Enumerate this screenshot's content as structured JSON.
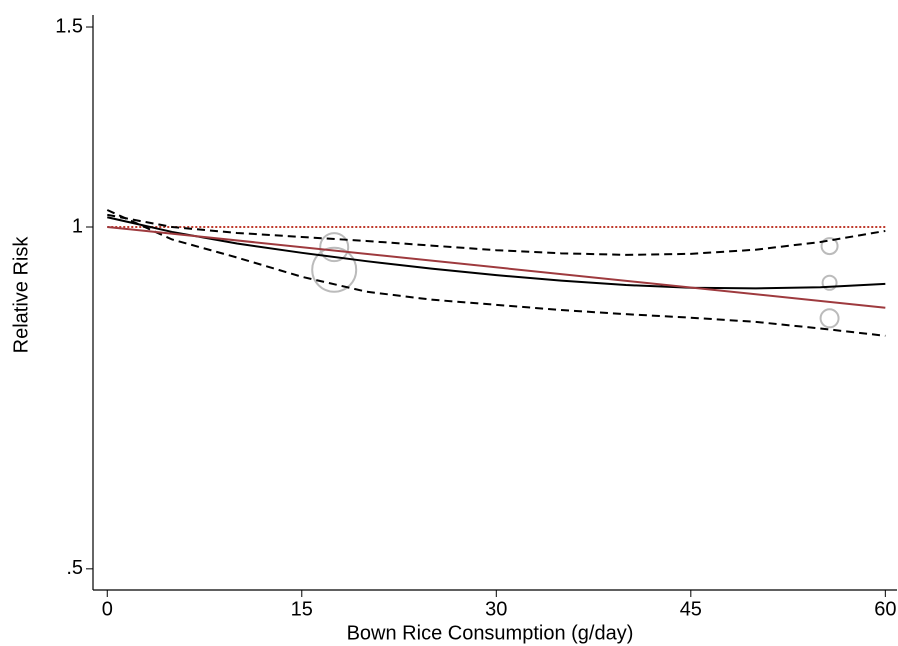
{
  "chart_data": {
    "type": "line",
    "x_label": "Bown Rice Consumption (g/day)",
    "y_label": "Relative Risk",
    "log_y": true,
    "xlim": [
      -1.1,
      60.9
    ],
    "xticks": [
      0,
      15,
      30,
      45,
      60
    ],
    "ylim": [
      0.479,
      1.537
    ],
    "yticks": [
      {
        "value": 0.5,
        "label": ".5"
      },
      1,
      1.5
    ],
    "reference_line": {
      "value": 1,
      "color": "#c0392b"
    },
    "series": [
      {
        "color": "#000000",
        "style": "solid",
        "x": [
          0,
          5,
          10,
          15,
          20,
          25,
          30,
          35,
          40,
          45,
          50,
          55,
          60
        ],
        "values": [
          1.02,
          0.99,
          0.967,
          0.949,
          0.933,
          0.919,
          0.907,
          0.897,
          0.889,
          0.884,
          0.883,
          0.885,
          0.891
        ]
      },
      {
        "color": "#000000",
        "style": "dashed",
        "x": [
          0,
          5,
          10,
          15,
          20,
          25,
          30,
          35,
          40,
          45,
          50,
          55,
          60
        ],
        "values": [
          1.025,
          1.0,
          0.988,
          0.98,
          0.972,
          0.963,
          0.954,
          0.948,
          0.945,
          0.947,
          0.955,
          0.97,
          0.992
        ]
      },
      {
        "color": "#000000",
        "style": "dashed",
        "x": [
          0,
          5,
          10,
          15,
          20,
          25,
          30,
          35,
          40,
          45,
          50,
          55,
          60
        ],
        "values": [
          1.035,
          0.975,
          0.94,
          0.904,
          0.877,
          0.863,
          0.854,
          0.845,
          0.838,
          0.832,
          0.825,
          0.814,
          0.802
        ]
      },
      {
        "color": "#9e3a3e",
        "style": "solid",
        "x": [
          0,
          60
        ],
        "values": [
          1.0,
          0.849
        ]
      }
    ],
    "points": {
      "color": "#bbbbbb",
      "x": [
        17.5,
        17.5,
        55.7,
        55.7,
        55.7
      ],
      "values": [
        0.96,
        0.917,
        0.962,
        0.893,
        0.831
      ],
      "sizes": [
        14,
        22,
        8,
        7,
        9
      ]
    }
  }
}
